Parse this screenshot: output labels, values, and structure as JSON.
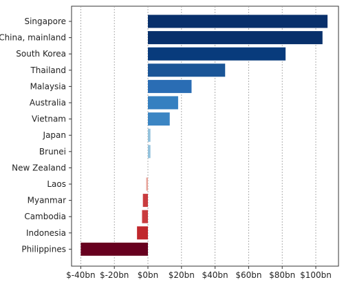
{
  "chart_data": {
    "type": "bar",
    "orientation": "horizontal",
    "categories": [
      "Singapore",
      "China, mainland",
      "South Korea",
      "Thailand",
      "Malaysia",
      "Australia",
      "Vietnam",
      "Japan",
      "Brunei",
      "New Zealand",
      "Laos",
      "Myanmar",
      "Cambodia",
      "Indonesia",
      "Philippines"
    ],
    "values": [
      107,
      104,
      82,
      46,
      26,
      18,
      13,
      1.5,
      1.5,
      0,
      -1,
      -3,
      -3.5,
      -6.5,
      -40
    ],
    "colors": [
      "#08306b",
      "#08306b",
      "#083b7c",
      "#1a5597",
      "#2a6db4",
      "#3580c0",
      "#3b85c3",
      "#93c2dc",
      "#93c2dc",
      "#d7e3f0",
      "#e8a49a",
      "#c93c3f",
      "#c93c3f",
      "#c0282d",
      "#67001f"
    ],
    "xticks": [
      -40,
      -20,
      0,
      20,
      40,
      60,
      80,
      100
    ],
    "xtick_labels": [
      "$-40bn",
      "$-20bn",
      "$0bn",
      "$20bn",
      "$40bn",
      "$60bn",
      "$80bn",
      "$100bn"
    ],
    "xlim": [
      -45,
      110
    ],
    "grid": true,
    "title": "",
    "xlabel": "",
    "ylabel": ""
  }
}
